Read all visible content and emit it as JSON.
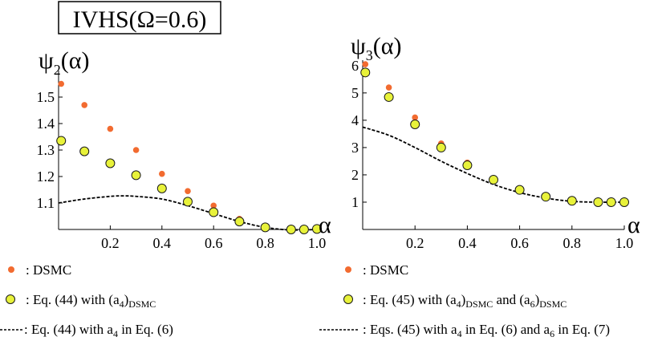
{
  "title": "IVHS(Ω=0.6)",
  "colors": {
    "dsmc": "#f26b30",
    "eq_fill": "#e8f23a",
    "eq_stroke": "#1a1a1a",
    "line": "#000000",
    "axis": "#000000"
  },
  "chart_data": [
    {
      "type": "scatter",
      "ylabel_main": "ψ",
      "ylabel_sub": "2",
      "ylabel_tail": "(α)",
      "xlabel": "α",
      "xlim": [
        0,
        1.0
      ],
      "ylim": [
        1.0,
        1.6
      ],
      "xticks": [
        {
          "v": 0.2,
          "label": "0.2"
        },
        {
          "v": 0.4,
          "label": "0.4"
        },
        {
          "v": 0.6,
          "label": "0.6"
        },
        {
          "v": 0.8,
          "label": "0.8"
        },
        {
          "v": 1.0,
          "label": "1.0"
        }
      ],
      "yticks": [
        {
          "v": 1.1,
          "label": "1.1"
        },
        {
          "v": 1.2,
          "label": "1.2"
        },
        {
          "v": 1.3,
          "label": "1.3"
        },
        {
          "v": 1.4,
          "label": "1.4"
        },
        {
          "v": 1.5,
          "label": "1.5"
        }
      ],
      "series": [
        {
          "name": "DSMC",
          "kind": "dots",
          "x": [
            0.01,
            0.1,
            0.2,
            0.3,
            0.4,
            0.5,
            0.6,
            0.7,
            0.8,
            0.9,
            0.95,
            1.0
          ],
          "y": [
            1.55,
            1.47,
            1.38,
            1.3,
            1.21,
            1.145,
            1.09,
            1.04,
            1.01,
            1.0,
            1.0,
            1.0
          ]
        },
        {
          "name": "Eq. (44) with (a4)DSMC",
          "kind": "circles",
          "x": [
            0.01,
            0.1,
            0.2,
            0.3,
            0.4,
            0.5,
            0.6,
            0.7,
            0.8,
            0.9,
            0.95,
            1.0
          ],
          "y": [
            1.335,
            1.295,
            1.25,
            1.205,
            1.155,
            1.105,
            1.065,
            1.03,
            1.008,
            1.0,
            1.0,
            1.002
          ]
        },
        {
          "name": "Eq. (44) with a4 in Eq. (6)",
          "kind": "dashed",
          "x": [
            0.0,
            0.1,
            0.2,
            0.25,
            0.3,
            0.4,
            0.5,
            0.6,
            0.7,
            0.8,
            0.9,
            1.0
          ],
          "y": [
            1.1,
            1.115,
            1.125,
            1.127,
            1.125,
            1.115,
            1.09,
            1.06,
            1.03,
            1.008,
            0.998,
            1.0
          ]
        }
      ]
    },
    {
      "type": "scatter",
      "ylabel_main": "ψ",
      "ylabel_sub": "3",
      "ylabel_tail": "(α)",
      "xlabel": "α",
      "xlim": [
        0,
        1.0
      ],
      "ylim": [
        0,
        6.2
      ],
      "xticks": [
        {
          "v": 0.2,
          "label": "0.2"
        },
        {
          "v": 0.4,
          "label": "0.4"
        },
        {
          "v": 0.6,
          "label": "0.6"
        },
        {
          "v": 0.8,
          "label": "0.8"
        },
        {
          "v": 1.0,
          "label": "1.0"
        }
      ],
      "yticks": [
        {
          "v": 1,
          "label": "1"
        },
        {
          "v": 2,
          "label": "2"
        },
        {
          "v": 3,
          "label": "3"
        },
        {
          "v": 4,
          "label": "4"
        },
        {
          "v": 5,
          "label": "5"
        },
        {
          "v": 6,
          "label": "6"
        }
      ],
      "series": [
        {
          "name": "DSMC",
          "kind": "dots",
          "x": [
            0.01,
            0.1,
            0.2,
            0.3,
            0.4,
            0.5,
            0.6,
            0.7,
            0.8,
            0.9,
            0.95,
            1.0
          ],
          "y": [
            6.05,
            5.2,
            4.1,
            3.15,
            2.45,
            1.85,
            1.45,
            1.2,
            1.05,
            1.0,
            1.0,
            1.0
          ]
        },
        {
          "name": "Eq. (45) with (a4)DSMC and (a6)DSMC",
          "kind": "circles",
          "x": [
            0.01,
            0.1,
            0.2,
            0.3,
            0.4,
            0.5,
            0.6,
            0.7,
            0.8,
            0.9,
            0.95,
            1.0
          ],
          "y": [
            5.75,
            4.85,
            3.85,
            3.0,
            2.35,
            1.82,
            1.45,
            1.2,
            1.05,
            1.0,
            1.0,
            1.0
          ]
        },
        {
          "name": "Eqs. (45) with a4 in Eq. (6) and a6 in Eq. (7)",
          "kind": "dashed",
          "x": [
            0.0,
            0.1,
            0.2,
            0.3,
            0.4,
            0.5,
            0.6,
            0.7,
            0.8,
            0.9,
            1.0
          ],
          "y": [
            3.75,
            3.45,
            3.0,
            2.5,
            2.05,
            1.65,
            1.35,
            1.15,
            1.03,
            1.0,
            1.0
          ]
        }
      ]
    }
  ],
  "legend_left": [
    {
      "kind": "dots",
      "text": ": DSMC"
    },
    {
      "kind": "circles",
      "text_a": ": Eq. (44) with (a",
      "sub_a": "4",
      "text_b": ")",
      "sub_b": "DSMC"
    },
    {
      "kind": "dashed",
      "text_a": ": Eq. (44) with a",
      "sub_a": "4",
      "text_b": " in Eq. (6)"
    }
  ],
  "legend_right": [
    {
      "kind": "dots",
      "text": ": DSMC"
    },
    {
      "kind": "circles",
      "text_a": ": Eq. (45) with (a",
      "sub_a": "4",
      "text_b": ")",
      "sub_b": "DSMC",
      "text_c": " and (a",
      "sub_c": "6",
      "text_d": ")",
      "sub_d": "DSMC"
    },
    {
      "kind": "dashed",
      "text_a": ": Eqs. (45) with a",
      "sub_a": "4",
      "text_b": " in Eq. (6) and a",
      "sub_b": "6",
      "text_c": " in Eq. (7)"
    }
  ]
}
